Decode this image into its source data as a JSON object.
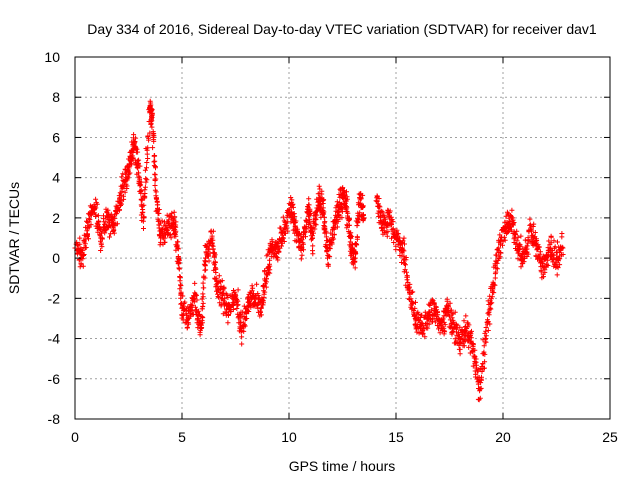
{
  "chart_data": {
    "type": "scatter",
    "title": "Day 334 of 2016, Sidereal Day-to-day VTEC variation (SDTVAR) for receiver dav1",
    "xlabel": "GPS time / hours",
    "ylabel": "SDTVAR / TECUs",
    "xlim": [
      0,
      25
    ],
    "ylim": [
      -8,
      10
    ],
    "xticks": [
      0,
      5,
      10,
      15,
      20,
      25
    ],
    "yticks": [
      -8,
      -6,
      -4,
      -2,
      0,
      2,
      4,
      6,
      8,
      10
    ],
    "grid": true,
    "marker": "+",
    "series": [
      {
        "name": "SDTVAR",
        "color": "#ff0000",
        "trace": [
          [
            0.0,
            0.5
          ],
          [
            0.3,
            0.0
          ],
          [
            0.6,
            1.5
          ],
          [
            0.9,
            2.5
          ],
          [
            1.2,
            1.0
          ],
          [
            1.5,
            2.0
          ],
          [
            1.8,
            1.5
          ],
          [
            2.1,
            3.0
          ],
          [
            2.4,
            4.0
          ],
          [
            2.6,
            5.0
          ],
          [
            2.8,
            5.8
          ],
          [
            3.0,
            4.0
          ],
          [
            3.2,
            2.0
          ],
          [
            3.5,
            7.5
          ],
          [
            3.6,
            7.0
          ],
          [
            3.8,
            3.0
          ],
          [
            4.0,
            1.0
          ],
          [
            4.3,
            1.5
          ],
          [
            4.6,
            1.8
          ],
          [
            4.8,
            0.5
          ],
          [
            5.0,
            -2.5
          ],
          [
            5.3,
            -3.0
          ],
          [
            5.6,
            -2.0
          ],
          [
            5.9,
            -3.5
          ],
          [
            6.1,
            0.0
          ],
          [
            6.4,
            1.0
          ],
          [
            6.6,
            -1.0
          ],
          [
            6.9,
            -2.0
          ],
          [
            7.2,
            -2.5
          ],
          [
            7.5,
            -1.8
          ],
          [
            7.8,
            -3.5
          ],
          [
            8.1,
            -2.2
          ],
          [
            8.4,
            -2.0
          ],
          [
            8.7,
            -2.5
          ],
          [
            9.0,
            -0.5
          ],
          [
            9.2,
            0.5
          ],
          [
            9.5,
            0.5
          ],
          [
            9.8,
            1.5
          ],
          [
            10.1,
            2.5
          ],
          [
            10.3,
            1.5
          ],
          [
            10.6,
            0.5
          ],
          [
            10.9,
            2.5
          ],
          [
            11.1,
            1.0
          ],
          [
            11.4,
            3.0
          ],
          [
            11.6,
            2.5
          ],
          [
            11.8,
            0.0
          ],
          [
            12.1,
            1.5
          ],
          [
            12.3,
            2.5
          ],
          [
            12.5,
            3.0
          ],
          [
            12.7,
            2.5
          ],
          [
            12.9,
            0.5
          ],
          [
            13.1,
            0.0
          ],
          [
            13.3,
            3.0
          ],
          [
            13.5,
            2.0
          ],
          [
            14.1,
            3.0
          ],
          [
            14.4,
            1.5
          ],
          [
            14.7,
            2.0
          ],
          [
            15.0,
            1.0
          ],
          [
            15.3,
            0.5
          ],
          [
            15.6,
            -1.5
          ],
          [
            15.9,
            -3.0
          ],
          [
            16.2,
            -3.5
          ],
          [
            16.5,
            -3.0
          ],
          [
            16.8,
            -2.5
          ],
          [
            17.1,
            -3.5
          ],
          [
            17.4,
            -2.5
          ],
          [
            17.7,
            -3.5
          ],
          [
            18.0,
            -4.0
          ],
          [
            18.3,
            -3.5
          ],
          [
            18.6,
            -4.5
          ],
          [
            18.9,
            -6.5
          ],
          [
            19.2,
            -4.0
          ],
          [
            19.5,
            -1.5
          ],
          [
            19.8,
            0.5
          ],
          [
            20.1,
            1.5
          ],
          [
            20.4,
            2.0
          ],
          [
            20.7,
            0.5
          ],
          [
            21.0,
            0.0
          ],
          [
            21.3,
            1.5
          ],
          [
            21.6,
            0.5
          ],
          [
            21.9,
            -0.5
          ],
          [
            22.2,
            0.5
          ],
          [
            22.5,
            0.0
          ],
          [
            22.8,
            0.5
          ]
        ]
      }
    ]
  }
}
